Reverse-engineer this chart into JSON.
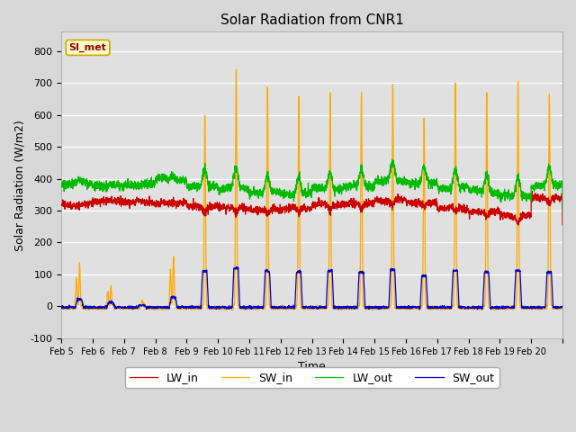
{
  "title": "Solar Radiation from CNR1",
  "xlabel": "Time",
  "ylabel": "Solar Radiation (W/m2)",
  "annotation": "SI_met",
  "ylim": [
    -100,
    860
  ],
  "yticks": [
    -100,
    0,
    100,
    200,
    300,
    400,
    500,
    600,
    700,
    800
  ],
  "xtick_labels": [
    "Feb 5",
    "Feb 6",
    "Feb 7",
    "Feb 8",
    "Feb 9",
    "Feb 10",
    "Feb 11",
    "Feb 12",
    "Feb 13",
    "Feb 14",
    "Feb 15",
    "Feb 16",
    "Feb 17",
    "Feb 18",
    "Feb 19",
    "Feb 20"
  ],
  "colors": {
    "LW_in": "#cc0000",
    "SW_in": "#ffaa00",
    "LW_out": "#00bb00",
    "SW_out": "#0000cc"
  },
  "bg_color": "#e0e0e0",
  "annotation_bg": "#ffffcc",
  "annotation_fg": "#990000",
  "grid_color": "#ffffff",
  "n_points": 3000,
  "n_days": 16,
  "sw_in_peaks": [
    130,
    65,
    18,
    160,
    605,
    740,
    690,
    655,
    675,
    670,
    700,
    595,
    700,
    670,
    700,
    665
  ],
  "sw_out_peaks": [
    23,
    12,
    3,
    28,
    110,
    120,
    110,
    108,
    112,
    107,
    115,
    95,
    112,
    107,
    112,
    107
  ],
  "lw_in_base": [
    318,
    330,
    328,
    324,
    312,
    308,
    305,
    308,
    318,
    322,
    332,
    325,
    308,
    296,
    282,
    340
  ],
  "lw_out_base": [
    382,
    378,
    382,
    398,
    378,
    368,
    358,
    352,
    368,
    378,
    392,
    388,
    372,
    358,
    348,
    378
  ]
}
